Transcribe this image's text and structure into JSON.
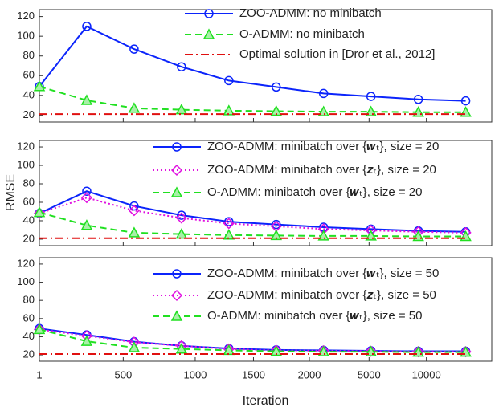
{
  "chart_data": [
    {
      "type": "line",
      "y_label": "RMSE",
      "legend": "upper right",
      "x": [
        1,
        2,
        3,
        4,
        5,
        6,
        7,
        8,
        9,
        10
      ],
      "xlim": [
        1,
        10.55
      ],
      "ylim": [
        13,
        127
      ],
      "yticks": [
        20,
        40,
        60,
        80,
        100,
        120
      ],
      "series": [
        {
          "name": "ZOO-ADMM: no minibatch",
          "color": "#0b24fb",
          "marker": "circle",
          "dash": "solid",
          "values": [
            49,
            110,
            87,
            69,
            55,
            48.5,
            42,
            39,
            36,
            34.5
          ]
        },
        {
          "name": "O-ADMM: no minibatch",
          "color": "#21e021",
          "marker": "triangle",
          "dash": "dashed",
          "values": [
            49,
            35,
            27,
            25.5,
            24.5,
            24,
            23.5,
            23.5,
            23,
            23
          ]
        },
        {
          "name": "Optimal solution in [Dror et al., 2012]",
          "color": "#e01010",
          "marker": "none",
          "dash": "dashdot",
          "values": [
            21,
            21,
            21,
            21,
            21,
            21,
            21,
            21,
            21,
            21
          ]
        }
      ]
    },
    {
      "type": "line",
      "legend": "upper right",
      "x": [
        1,
        2,
        3,
        4,
        5,
        6,
        7,
        8,
        9,
        10
      ],
      "xlim": [
        1,
        10.55
      ],
      "ylim": [
        13,
        127
      ],
      "yticks": [
        20,
        40,
        60,
        80,
        100,
        120
      ],
      "series": [
        {
          "name": "ZOO-ADMM: minibatch over {𝒘ₜ}, size = 20",
          "color": "#0b24fb",
          "marker": "circle",
          "dash": "solid",
          "values": [
            48,
            72,
            56,
            46,
            39,
            36,
            33,
            31,
            29,
            28
          ]
        },
        {
          "name": "ZOO-ADMM: minibatch over {𝒛ₜ}, size = 20",
          "color": "#e010e0",
          "marker": "diamond",
          "dash": "dotted",
          "values": [
            48,
            65,
            51,
            43,
            37,
            34,
            31,
            29.5,
            28,
            27
          ]
        },
        {
          "name": "O-ADMM: minibatch over {𝒘ₜ}, size = 20",
          "color": "#21e021",
          "marker": "triangle",
          "dash": "dashed",
          "values": [
            49,
            35,
            27,
            25.5,
            24.5,
            24,
            23.5,
            23.5,
            23,
            23
          ]
        },
        {
          "color": "#e01010",
          "marker": "none",
          "dash": "dashdot",
          "values": [
            21,
            21,
            21,
            21,
            21,
            21,
            21,
            21,
            21,
            21
          ]
        }
      ]
    },
    {
      "type": "line",
      "x_label": "Iteration",
      "legend": "upper right",
      "x": [
        1,
        2,
        3,
        4,
        5,
        6,
        7,
        8,
        9,
        10
      ],
      "xlim": [
        1,
        10.55
      ],
      "ylim": [
        13,
        127
      ],
      "yticks": [
        20,
        40,
        60,
        80,
        100,
        120
      ],
      "xticks": [
        1,
        {
          "value": 2.77,
          "label": "500"
        },
        {
          "value": 4.29,
          "label": "1000"
        },
        {
          "value": 5.52,
          "label": "1500"
        },
        {
          "value": 6.7,
          "label": "2000"
        },
        {
          "value": 7.96,
          "label": "5000"
        },
        {
          "value": 9.17,
          "label": "10000"
        }
      ],
      "series": [
        {
          "name": "ZOO-ADMM: minibatch over {𝒘ₜ}, size = 50",
          "color": "#0b24fb",
          "marker": "circle",
          "dash": "solid",
          "values": [
            49,
            42,
            34.5,
            30,
            27,
            25.5,
            25,
            24.5,
            24,
            24
          ]
        },
        {
          "name": "ZOO-ADMM: minibatch over {𝒛ₜ}, size = 50",
          "color": "#e010e0",
          "marker": "diamond",
          "dash": "dotted",
          "values": [
            48,
            41,
            34,
            30,
            26.5,
            25,
            24.5,
            24,
            23.5,
            23.5
          ]
        },
        {
          "name": "O-ADMM: minibatch over {𝒘ₜ}, size = 50",
          "color": "#21e021",
          "marker": "triangle",
          "dash": "dashed",
          "values": [
            48,
            35,
            28,
            26.5,
            25,
            24,
            23.5,
            23.5,
            23,
            23
          ]
        },
        {
          "color": "#e01010",
          "marker": "none",
          "dash": "dashdot",
          "values": [
            21,
            21,
            21,
            21,
            21,
            21,
            21,
            21,
            21,
            21
          ]
        }
      ]
    }
  ]
}
